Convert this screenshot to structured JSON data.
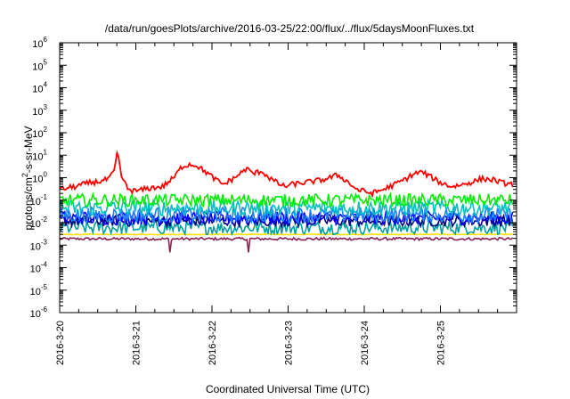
{
  "chart_data": {
    "type": "line",
    "title": "/data/run/goesPlots/archive/2016-03-25/22:00/flux/../flux/5daysMoonFluxes.txt",
    "xlabel": "Coordinated Universal Time (UTC)",
    "ylabel_parts": {
      "pre": "protons/cm",
      "sup": "2",
      "post": "-s-sr-MeV"
    },
    "yscale": "log",
    "ylim": [
      1e-06,
      1000000.0
    ],
    "y_ticks": [
      {
        "base": "10",
        "exp": "-6",
        "value": -6
      },
      {
        "base": "10",
        "exp": "-5",
        "value": -5
      },
      {
        "base": "10",
        "exp": "-4",
        "value": -4
      },
      {
        "base": "10",
        "exp": "-3",
        "value": -3
      },
      {
        "base": "10",
        "exp": "-2",
        "value": -2
      },
      {
        "base": "10",
        "exp": "-1",
        "value": -1
      },
      {
        "base": "10",
        "exp": "0",
        "value": 0
      },
      {
        "base": "10",
        "exp": "1",
        "value": 1
      },
      {
        "base": "10",
        "exp": "2",
        "value": 2
      },
      {
        "base": "10",
        "exp": "3",
        "value": 3
      },
      {
        "base": "10",
        "exp": "4",
        "value": 4
      },
      {
        "base": "10",
        "exp": "5",
        "value": 5
      },
      {
        "base": "10",
        "exp": "6",
        "value": 6
      }
    ],
    "xlim": [
      "2016-3-20",
      "2016-3-26"
    ],
    "x_ticks": [
      {
        "label": "2016-3-20",
        "day": 0
      },
      {
        "label": "2016-3-21",
        "day": 1
      },
      {
        "label": "2016-3-22",
        "day": 2
      },
      {
        "label": "2016-3-23",
        "day": 3
      },
      {
        "label": "2016-3-24",
        "day": 4
      },
      {
        "label": "2016-3-25",
        "day": 5
      }
    ],
    "grid": false,
    "legend": "none",
    "series": [
      {
        "color": "#ff0000",
        "kind": "trend",
        "x": [
          0,
          0.2,
          0.4,
          0.55,
          0.65,
          0.72,
          0.75,
          0.78,
          0.8,
          0.85,
          0.9,
          1.0,
          1.1,
          1.2,
          1.35,
          1.5,
          1.6,
          1.7,
          1.8,
          1.95,
          2.05,
          2.15,
          2.3,
          2.45,
          2.55,
          2.65,
          2.75,
          2.85,
          2.95,
          3.05,
          3.2,
          3.35,
          3.45,
          3.55,
          3.65,
          3.75,
          3.9,
          4.0,
          4.1,
          4.25,
          4.4,
          4.55,
          4.65,
          4.75,
          4.85,
          5.0,
          5.15,
          5.3,
          5.45,
          5.55,
          5.7,
          5.8,
          5.95
        ],
        "y": [
          0.3,
          0.4,
          0.6,
          0.7,
          0.9,
          2,
          10,
          8,
          1.5,
          0.6,
          0.3,
          0.25,
          0.3,
          0.35,
          0.4,
          1,
          3,
          4,
          3.5,
          1.5,
          0.8,
          0.5,
          1,
          2.5,
          1.5,
          2,
          1,
          0.6,
          0.4,
          0.5,
          0.6,
          0.7,
          0.8,
          1,
          1.3,
          0.8,
          0.3,
          0.25,
          0.2,
          0.3,
          0.5,
          0.9,
          1.5,
          1.8,
          1.2,
          0.6,
          0.4,
          0.5,
          0.7,
          0.9,
          0.8,
          0.6,
          0.5
        ],
        "noise": 0.12
      },
      {
        "color": "#00ee00",
        "kind": "flat",
        "level": 0.1,
        "noise": 0.28
      },
      {
        "color": "#00c0c0",
        "kind": "flat",
        "level": 0.045,
        "noise": 0.35
      },
      {
        "color": "#1a7fff",
        "kind": "flat",
        "level": 0.022,
        "noise": 0.35
      },
      {
        "color": "#0000ff",
        "kind": "flat",
        "level": 0.016,
        "noise": 0.3
      },
      {
        "color": "#000080",
        "kind": "flat",
        "level": 0.012,
        "noise": 0.25
      },
      {
        "color": "#00a0a0",
        "kind": "flat",
        "level": 0.006,
        "noise": 0.3
      },
      {
        "color": "#ffe000",
        "kind": "flat",
        "level": 0.003,
        "noise": 0.02
      },
      {
        "color": "#8b2252",
        "kind": "flat",
        "level": 0.0019,
        "noise": 0.06
      }
    ]
  }
}
